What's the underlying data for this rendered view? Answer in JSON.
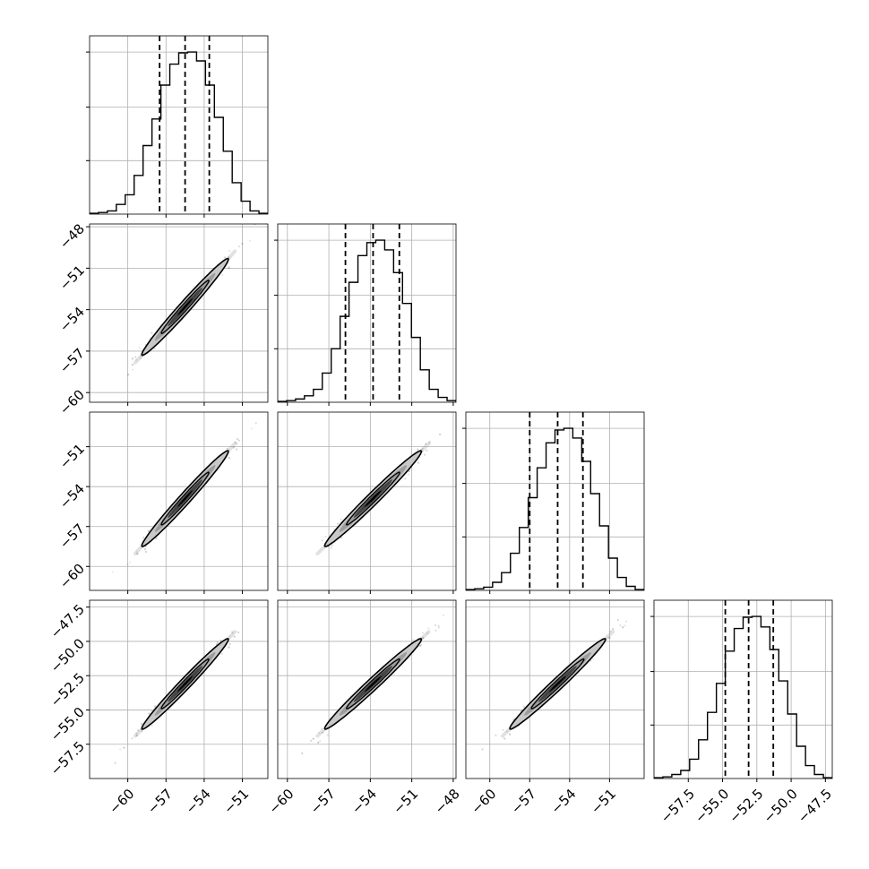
{
  "chart_data": {
    "type": "corner",
    "grid": true,
    "quantiles": [
      0.16,
      0.5,
      0.84
    ],
    "parameters": [
      {
        "range": [
          -63,
          -49
        ],
        "xticks": [
          -60,
          -57,
          -54,
          -51
        ],
        "xtick_labels": [
          "−60",
          "−57",
          "−54",
          "−51"
        ],
        "yticks": [],
        "ytick_labels": [],
        "mean": -55.5,
        "sd": 1.7,
        "quantile_values": [
          -57.5,
          -55.5,
          -53.6
        ],
        "hist": {
          "edges": [
            -63,
            -62.3,
            -61.6,
            -60.9,
            -60.2,
            -59.5,
            -58.8,
            -58.1,
            -57.4,
            -56.7,
            -56.0,
            -55.3,
            -54.6,
            -53.9,
            -53.2,
            -52.5,
            -51.8,
            -51.1,
            -50.4,
            -49.7,
            -49.0
          ],
          "counts": [
            1,
            2,
            4,
            12,
            24,
            48,
            85,
            118,
            160,
            186,
            200,
            201,
            190,
            160,
            120,
            78,
            39,
            16,
            4,
            1
          ]
        }
      },
      {
        "range": [
          -60.7,
          -47.8
        ],
        "xticks": [
          -60,
          -57,
          -54,
          -51,
          -48
        ],
        "xtick_labels": [
          "−60",
          "−57",
          "−54",
          "−51",
          "−48"
        ],
        "yticks": [
          -48,
          -51,
          -54,
          -57,
          -60
        ],
        "ytick_labels": [
          "−48",
          "−51",
          "−54",
          "−57",
          "−60"
        ],
        "mean": -53.8,
        "sd": 1.75,
        "quantile_values": [
          -55.8,
          -53.8,
          -51.9
        ],
        "hist": {
          "edges": [
            -60.7,
            -60.055,
            -59.41,
            -58.765,
            -58.12,
            -57.475,
            -56.83,
            -56.185,
            -55.54,
            -54.895,
            -54.25,
            -53.605,
            -52.96,
            -52.315,
            -51.67,
            -51.025,
            -50.38,
            -49.735,
            -49.09,
            -48.445,
            -47.8
          ],
          "counts": [
            1,
            2,
            4,
            8,
            16,
            36,
            66,
            106,
            148,
            181,
            197,
            200,
            188,
            160,
            122,
            80,
            40,
            16,
            6,
            2
          ]
        }
      },
      {
        "range": [
          -61.8,
          -48.4
        ],
        "xticks": [
          -60,
          -57,
          -54,
          -51
        ],
        "xtick_labels": [
          "−60",
          "−57",
          "−54",
          "−51"
        ],
        "yticks": [
          -51,
          -54,
          -57,
          -60
        ],
        "ytick_labels": [
          "−51",
          "−54",
          "−57",
          "−60"
        ],
        "mean": -54.9,
        "sd": 1.8,
        "quantile_values": [
          -57.0,
          -54.9,
          -53.0
        ],
        "hist": {
          "edges": [
            -61.8,
            -61.13,
            -60.46,
            -59.79,
            -59.12,
            -58.45,
            -57.78,
            -57.11,
            -56.44,
            -55.77,
            -55.1,
            -54.43,
            -53.76,
            -53.09,
            -52.42,
            -51.75,
            -51.08,
            -50.41,
            -49.74,
            -49.07,
            -48.4
          ],
          "counts": [
            1,
            2,
            4,
            10,
            22,
            46,
            78,
            115,
            152,
            183,
            199,
            201,
            189,
            160,
            120,
            80,
            40,
            16,
            5,
            1
          ]
        }
      },
      {
        "range": [
          -60.0,
          -47.0
        ],
        "xticks": [
          -57.5,
          -55.0,
          -52.5,
          -50.0,
          -47.5
        ],
        "xtick_labels": [
          "−57.5",
          "−55.0",
          "−52.5",
          "−50.0",
          "−47.5"
        ],
        "yticks": [
          -47.5,
          -50.0,
          -52.5,
          -55.0,
          -57.5
        ],
        "ytick_labels": [
          "−47.5",
          "−50.0",
          "−52.5",
          "−55.0",
          "−57.5"
        ],
        "mean": -53.1,
        "sd": 1.65,
        "quantile_values": [
          -54.8,
          -53.1,
          -51.3
        ],
        "hist": {
          "edges": [
            -60.0,
            -59.35,
            -58.7,
            -58.05,
            -57.4,
            -56.75,
            -56.1,
            -55.45,
            -54.8,
            -54.15,
            -53.5,
            -52.85,
            -52.2,
            -51.55,
            -50.9,
            -50.25,
            -49.6,
            -48.95,
            -48.3,
            -47.65,
            -47.0
          ],
          "counts": [
            1,
            2,
            5,
            10,
            24,
            48,
            82,
            118,
            158,
            186,
            200,
            201,
            188,
            160,
            121,
            80,
            40,
            16,
            5,
            1
          ]
        }
      }
    ]
  }
}
